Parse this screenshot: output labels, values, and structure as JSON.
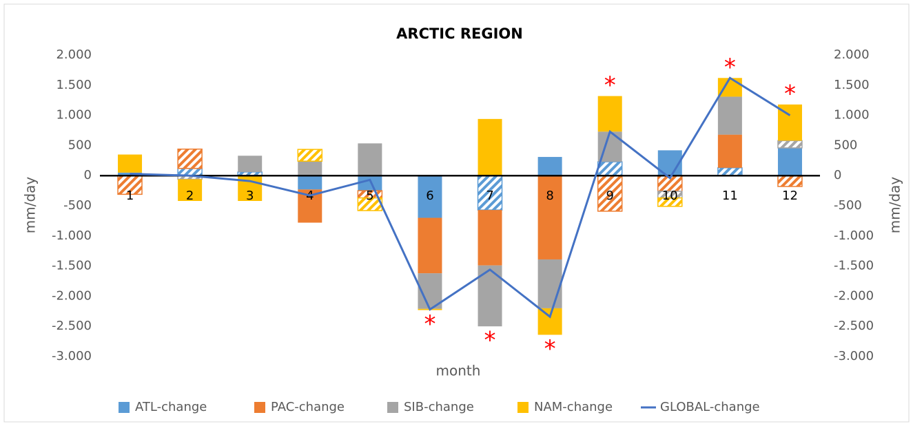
{
  "chart_data": {
    "type": "stacked-bar-line",
    "title": "ARCTIC REGION",
    "xlabel": "month",
    "ylabel": "mm/day",
    "y2label": "mm/day",
    "categories": [
      "1",
      "2",
      "3",
      "4",
      "5",
      "6",
      "7",
      "8",
      "9",
      "10",
      "11",
      "12"
    ],
    "series": [
      {
        "name": "ATL-change",
        "color": "#5b9bd5",
        "values": [
          50,
          120,
          60,
          -230,
          -250,
          -700,
          -570,
          310,
          230,
          420,
          130,
          460
        ],
        "hatched": [
          false,
          true,
          true,
          false,
          false,
          false,
          true,
          false,
          true,
          false,
          true,
          false
        ]
      },
      {
        "name": "PAC-change",
        "color": "#ed7d31",
        "values": [
          -310,
          320,
          0,
          -550,
          -120,
          -920,
          -920,
          -1390,
          -590,
          -260,
          550,
          -180
        ],
        "hatched": [
          true,
          true,
          false,
          false,
          true,
          false,
          false,
          false,
          true,
          true,
          false,
          true
        ]
      },
      {
        "name": "SIB-change",
        "color": "#a5a5a5",
        "values": [
          0,
          -60,
          270,
          240,
          535,
          -590,
          -1010,
          -810,
          500,
          -110,
          630,
          120
        ],
        "hatched": [
          false,
          true,
          false,
          false,
          false,
          false,
          false,
          false,
          false,
          true,
          false,
          true
        ]
      },
      {
        "name": "NAM-change",
        "color": "#ffc000",
        "values": [
          300,
          -360,
          -420,
          195,
          -210,
          -20,
          940,
          -440,
          590,
          -140,
          310,
          600
        ],
        "hatched": [
          false,
          false,
          false,
          true,
          true,
          false,
          false,
          false,
          false,
          true,
          false,
          false
        ]
      },
      {
        "name": "GLOBAL-change",
        "color": "#4472c4",
        "type": "line",
        "axis": "y2",
        "values": [
          30,
          0,
          -90,
          -330,
          -70,
          -2220,
          -1560,
          -2340,
          730,
          -40,
          1620,
          1000
        ]
      }
    ],
    "marker": "*",
    "marker_color": "#ff0000",
    "starred": [
      false,
      false,
      false,
      false,
      false,
      true,
      true,
      true,
      true,
      false,
      true,
      true
    ],
    "ylim": [
      -3000,
      2000
    ],
    "yticks": [
      {
        "value": 2000,
        "label": "2.000"
      },
      {
        "value": 1500,
        "label": "1.500"
      },
      {
        "value": 1000,
        "label": "1.000"
      },
      500,
      0,
      -500,
      {
        "value": -1000,
        "label": "-1.000"
      },
      {
        "value": -1500,
        "label": "-1.500"
      },
      {
        "value": -2000,
        "label": "-2.000"
      },
      {
        "value": -2500,
        "label": "-2.500"
      },
      {
        "value": -3000,
        "label": "-3.000"
      }
    ],
    "y2lim": [
      -3000,
      2000
    ],
    "y2ticks": [
      {
        "value": 2000,
        "label": "2.000"
      },
      {
        "value": 1500,
        "label": "1.500"
      },
      {
        "value": 1000,
        "label": "1.000"
      },
      500,
      0,
      -500,
      {
        "value": -1000,
        "label": "-1.000"
      },
      {
        "value": -1500,
        "label": "-1.500"
      },
      {
        "value": -2000,
        "label": "-2.000"
      },
      {
        "value": -2500,
        "label": "-2.500"
      },
      {
        "value": -3000,
        "label": "-3.000"
      }
    ],
    "legend": "bottom"
  }
}
